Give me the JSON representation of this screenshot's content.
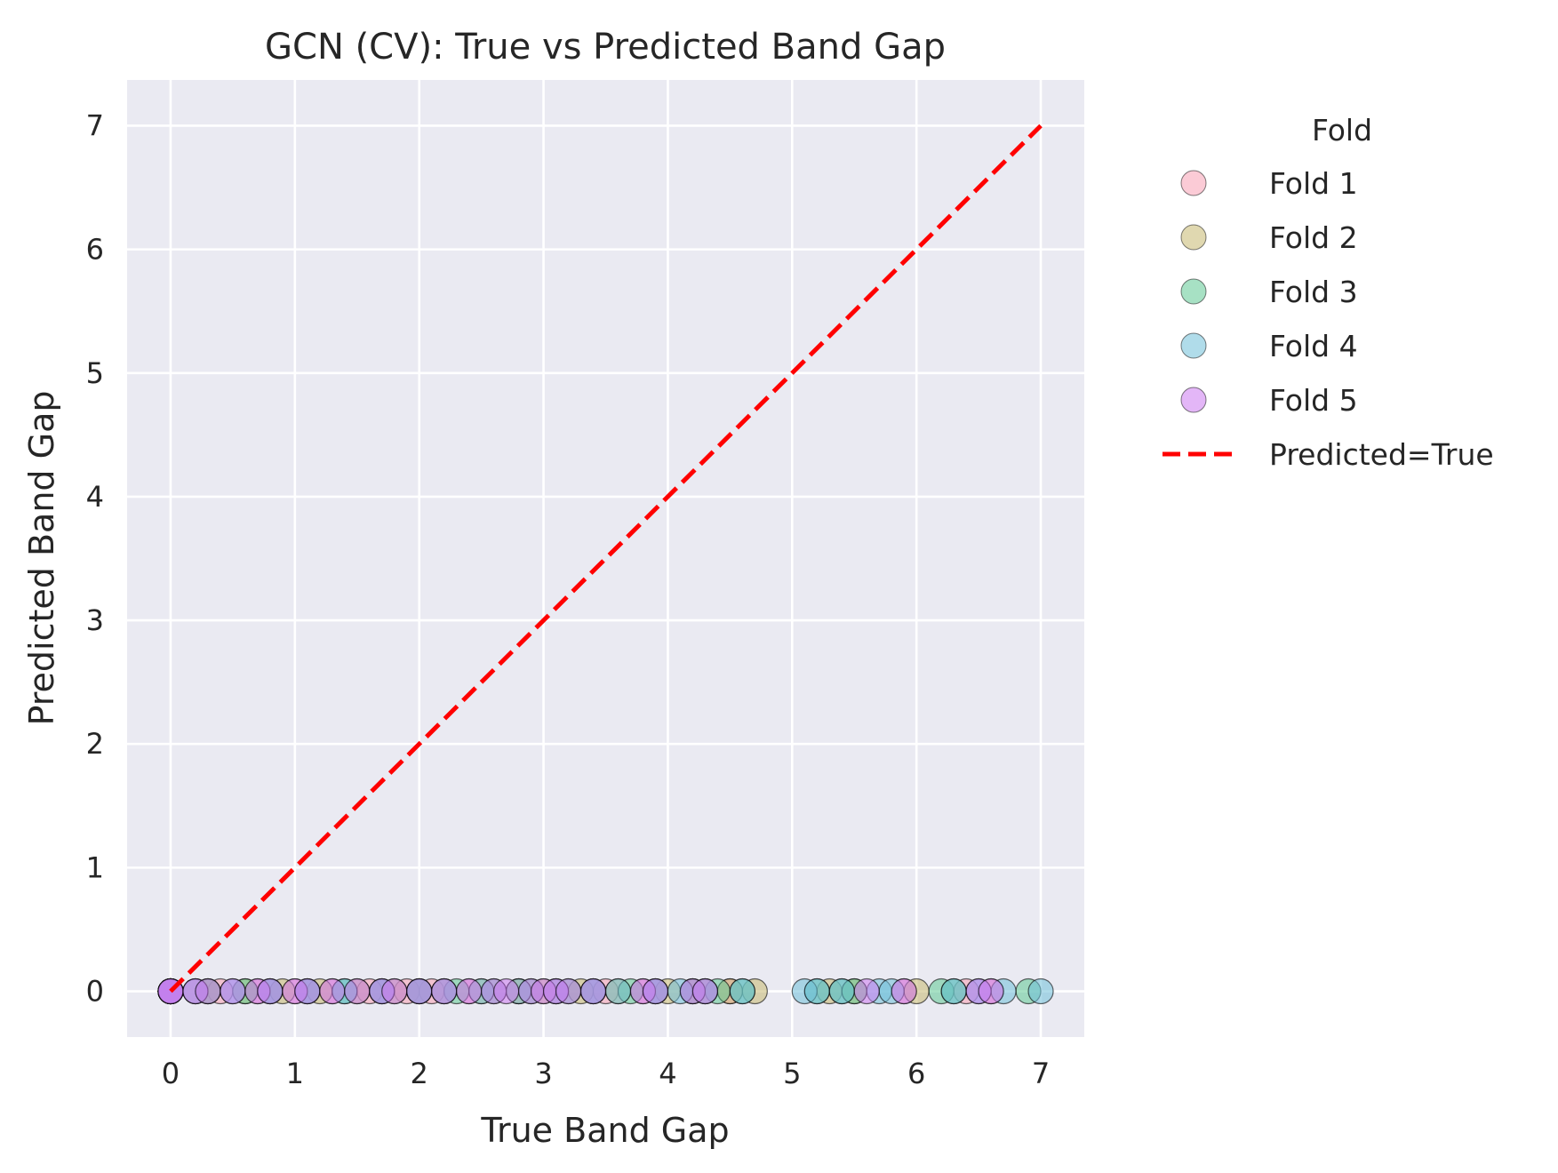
{
  "chart_data": {
    "type": "scatter",
    "title": "GCN (CV): True vs Predicted Band Gap",
    "xlabel": "True Band Gap",
    "ylabel": "Predicted Band Gap",
    "xlim": [
      -0.35,
      7.35
    ],
    "ylim": [
      -0.37,
      7.37
    ],
    "xticks": [
      "0",
      "1",
      "2",
      "3",
      "4",
      "5",
      "6",
      "7"
    ],
    "yticks": [
      "0",
      "1",
      "2",
      "3",
      "4",
      "5",
      "6",
      "7"
    ],
    "grid": true,
    "background": "#eaeaf2",
    "legend": {
      "title": "Fold",
      "placement": "outside-right",
      "line_label": "Predicted=True"
    },
    "reference_line": {
      "label": "Predicted=True",
      "x": [
        0,
        7
      ],
      "y": [
        0,
        7
      ],
      "color": "#ff0000",
      "style": "dashed"
    },
    "series": [
      {
        "name": "Fold 1",
        "color": "#f8a1b4",
        "x": [
          0,
          0,
          0.2,
          0.4,
          0.7,
          1.0,
          1.3,
          1.6,
          1.9,
          2.1,
          2.4,
          2.8,
          3.1,
          3.5,
          3.8,
          4.2,
          4.5,
          5.9,
          6.4,
          6.6
        ],
        "y": [
          0,
          0,
          0,
          0,
          0,
          0,
          0,
          0,
          0,
          0,
          0,
          0,
          0,
          0,
          0,
          0,
          0,
          0,
          0,
          0
        ]
      },
      {
        "name": "Fold 2",
        "color": "#c6b870",
        "x": [
          0,
          0,
          0.3,
          0.6,
          0.9,
          1.2,
          1.5,
          1.8,
          2.0,
          2.2,
          2.5,
          2.8,
          3.0,
          3.3,
          3.6,
          4.0,
          4.3,
          4.5,
          4.7,
          5.3,
          5.5,
          6.0
        ],
        "y": [
          0,
          0,
          0,
          0,
          0,
          0,
          0,
          0,
          0,
          0,
          0,
          0,
          0,
          0,
          0,
          0,
          0,
          0,
          0,
          0,
          0,
          0
        ]
      },
      {
        "name": "Fold 3",
        "color": "#5fc894",
        "x": [
          0,
          0,
          0.3,
          0.6,
          0.8,
          1.1,
          1.4,
          1.7,
          2.0,
          2.3,
          2.6,
          2.9,
          3.2,
          3.4,
          3.7,
          3.9,
          4.2,
          4.4,
          4.6,
          5.2,
          5.4,
          5.5,
          6.2,
          6.3,
          6.9
        ],
        "y": [
          0,
          0,
          0,
          0,
          0,
          0,
          0,
          0,
          0,
          0,
          0,
          0,
          0,
          0,
          0,
          0,
          0,
          0,
          0,
          0,
          0,
          0,
          0,
          0,
          0
        ]
      },
      {
        "name": "Fold 4",
        "color": "#6fbfd8",
        "x": [
          0,
          0,
          0.2,
          0.5,
          0.8,
          1.1,
          1.4,
          1.7,
          2.0,
          2.2,
          2.5,
          2.8,
          3.1,
          3.4,
          3.6,
          3.9,
          4.1,
          4.3,
          4.6,
          5.1,
          5.2,
          5.4,
          5.7,
          5.8,
          6.3,
          6.5,
          6.7,
          7.0
        ],
        "y": [
          0,
          0,
          0,
          0,
          0,
          0,
          0,
          0,
          0,
          0,
          0,
          0,
          0,
          0,
          0,
          0,
          0,
          0,
          0,
          0,
          0,
          0,
          0,
          0,
          0,
          0,
          0,
          0
        ]
      },
      {
        "name": "Fold 5",
        "color": "#cc7af0",
        "x": [
          0,
          0,
          0,
          0.2,
          0.3,
          0.5,
          0.7,
          0.8,
          1.0,
          1.1,
          1.3,
          1.5,
          1.7,
          1.8,
          2.0,
          2.2,
          2.4,
          2.6,
          2.7,
          2.9,
          3.0,
          3.1,
          3.2,
          3.4,
          3.8,
          3.9,
          4.2,
          4.3,
          5.6,
          5.9,
          6.5,
          6.6
        ],
        "y": [
          0,
          0,
          0,
          0,
          0,
          0,
          0,
          0,
          0,
          0,
          0,
          0,
          0,
          0,
          0,
          0,
          0,
          0,
          0,
          0,
          0,
          0,
          0,
          0,
          0,
          0,
          0,
          0,
          0,
          0,
          0,
          0
        ]
      }
    ]
  }
}
